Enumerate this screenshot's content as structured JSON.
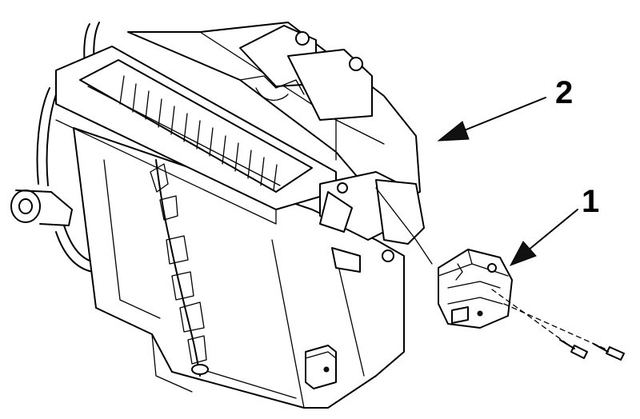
{
  "callouts": [
    {
      "id": "2",
      "label": "2",
      "target": "hvac-housing"
    },
    {
      "id": "1",
      "label": "1",
      "target": "actuator-motor"
    }
  ],
  "parts": {
    "housing": "hvac-housing",
    "actuator": "actuator-motor",
    "screws": "mounting-screws"
  }
}
